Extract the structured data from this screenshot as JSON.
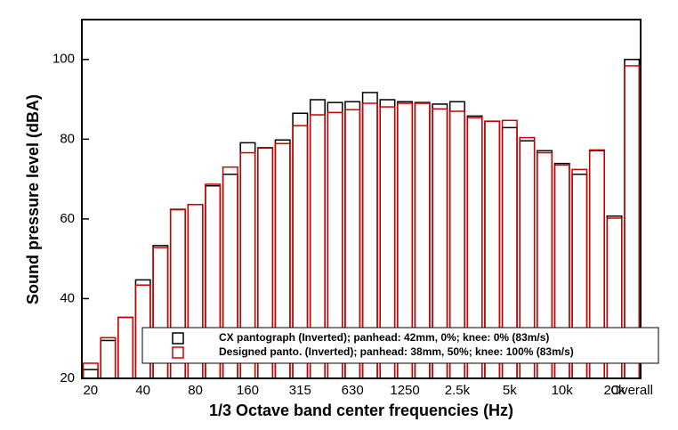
{
  "chart_data": {
    "type": "bar",
    "x_label": "1/3 Octave band center frequencies (Hz)",
    "y_label": "Sound pressure level (dBA)",
    "categories": [
      "20",
      null,
      null,
      "40",
      null,
      null,
      "80",
      null,
      null,
      "160",
      null,
      null,
      "315",
      null,
      null,
      "630",
      null,
      null,
      "1250",
      null,
      null,
      "2.5k",
      null,
      null,
      "5k",
      null,
      null,
      "10k",
      null,
      null,
      "20k",
      "Overall"
    ],
    "series": [
      {
        "name": "CX pantograph (Inverted); panhead: 42mm, 0%; knee: 0% (83m/s)",
        "color": "#000000",
        "values": [
          22.2,
          29.5,
          35.3,
          44.7,
          53.3,
          62.4,
          63.6,
          68.3,
          71.2,
          79.1,
          77.8,
          79.8,
          86.5,
          89.9,
          89.2,
          89.4,
          91.7,
          89.9,
          89.4,
          89.2,
          88.8,
          89.4,
          85.8,
          84.5,
          82.9,
          79.6,
          77.1,
          73.9,
          71.2,
          77.1,
          60.7,
          100.0
        ]
      },
      {
        "name": "Designed panto. (Inverted); panhead: 38mm, 50%; knee: 100% (83m/s)",
        "color": "#cc0000",
        "values": [
          23.8,
          30.2,
          35.3,
          43.4,
          52.8,
          62.3,
          63.6,
          68.7,
          73.0,
          76.6,
          77.9,
          78.9,
          83.4,
          86.1,
          86.7,
          87.4,
          89.0,
          88.1,
          89.0,
          89.0,
          87.6,
          87.0,
          85.4,
          84.5,
          84.7,
          80.4,
          76.6,
          73.5,
          72.4,
          77.3,
          60.2,
          98.4
        ]
      }
    ],
    "ylim": [
      20,
      110
    ],
    "yticks": [
      20,
      40,
      60,
      80,
      100
    ],
    "legend": "lower right"
  }
}
